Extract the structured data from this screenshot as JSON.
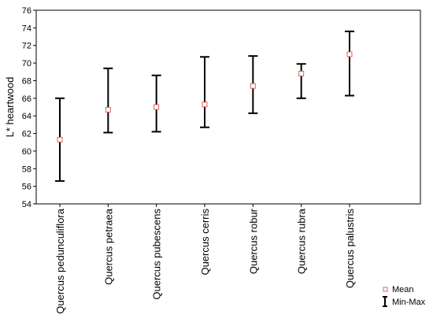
{
  "chart_data": {
    "type": "error-bar",
    "title": "",
    "xlabel": "",
    "ylabel": "L* heartwood",
    "ylim": [
      54,
      76
    ],
    "yticks": [
      54,
      56,
      58,
      60,
      62,
      64,
      66,
      68,
      70,
      72,
      74,
      76
    ],
    "categories": [
      "Quercus pedunculiflora",
      "Quercus petraea",
      "Quercus pubescens",
      "Quercus cerris",
      "Quercus robur",
      "Quercus rubra",
      "Quercus palustris"
    ],
    "series": [
      {
        "name": "Mean",
        "values": [
          61.3,
          64.7,
          65.0,
          65.3,
          67.4,
          68.8,
          71.0
        ]
      },
      {
        "name": "Min-Max",
        "min": [
          56.6,
          62.1,
          62.2,
          62.7,
          64.3,
          66.0,
          66.3
        ],
        "max": [
          66.0,
          69.4,
          68.6,
          70.7,
          70.8,
          69.9,
          73.6
        ]
      }
    ],
    "legend": {
      "position": "bottom-right",
      "entries": [
        "Mean",
        "Min-Max"
      ]
    },
    "grid": false,
    "colors": {
      "mean_marker": "#e06060",
      "whisker": "#000000"
    }
  }
}
